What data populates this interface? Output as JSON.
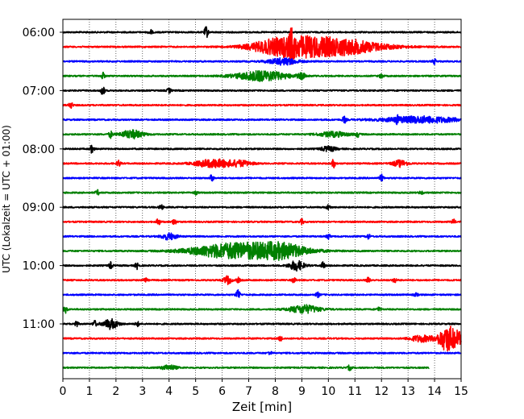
{
  "chart_data": {
    "type": "line",
    "title": "",
    "xlabel": "Zeit  [min]",
    "ylabel": "UTC (Lokalzeit = UTC + 01:00)",
    "xlim": [
      0,
      15
    ],
    "x_ticks": [
      0,
      1,
      2,
      3,
      4,
      5,
      6,
      7,
      8,
      9,
      10,
      11,
      12,
      13,
      14,
      15
    ],
    "y_tick_labels": [
      "06:00",
      "07:00",
      "08:00",
      "09:00",
      "10:00",
      "11:00"
    ],
    "grid": "vertical dotted lines at each minute",
    "trace_interval_minutes": 15,
    "colors": [
      "#000000",
      "#ff0000",
      "#0000ff",
      "#008000"
    ],
    "series": [
      {
        "start": "06:00",
        "color": "#000000",
        "end_min": 15,
        "events": [
          [
            5.4,
            0.7,
            0.05
          ],
          [
            3.3,
            0.3,
            0.05
          ]
        ]
      },
      {
        "start": "06:15",
        "color": "#ff0000",
        "end_min": 15,
        "events": [
          [
            8.4,
            1.0,
            0.9
          ],
          [
            10.3,
            1.0,
            1.2
          ],
          [
            8.6,
            1.1,
            0.05
          ]
        ]
      },
      {
        "start": "06:30",
        "color": "#0000ff",
        "end_min": 15,
        "events": [
          [
            8.3,
            0.4,
            0.4
          ],
          [
            14.0,
            0.3,
            0.05
          ]
        ]
      },
      {
        "start": "06:45",
        "color": "#008000",
        "end_min": 15,
        "events": [
          [
            7.5,
            0.6,
            0.7
          ],
          [
            9.0,
            0.3,
            0.1
          ],
          [
            1.5,
            0.4,
            0.05
          ],
          [
            12.0,
            0.3,
            0.05
          ]
        ]
      },
      {
        "start": "07:00",
        "color": "#000000",
        "end_min": 15,
        "events": [
          [
            1.5,
            0.6,
            0.05
          ],
          [
            4.0,
            0.3,
            0.05
          ]
        ]
      },
      {
        "start": "07:15",
        "color": "#ff0000",
        "end_min": 15,
        "events": [
          [
            0.3,
            0.4,
            0.05
          ]
        ]
      },
      {
        "start": "07:30",
        "color": "#0000ff",
        "end_min": 15,
        "events": [
          [
            13.5,
            0.4,
            1.0
          ],
          [
            10.6,
            0.4,
            0.05
          ],
          [
            12.6,
            0.3,
            0.05
          ]
        ]
      },
      {
        "start": "07:45",
        "color": "#008000",
        "end_min": 15,
        "events": [
          [
            2.6,
            0.5,
            0.3
          ],
          [
            1.8,
            0.4,
            0.05
          ],
          [
            10.2,
            0.3,
            0.4
          ],
          [
            11.1,
            0.3,
            0.05
          ]
        ]
      },
      {
        "start": "08:00",
        "color": "#000000",
        "end_min": 15,
        "events": [
          [
            1.1,
            0.5,
            0.05
          ],
          [
            10.0,
            0.3,
            0.2
          ]
        ]
      },
      {
        "start": "08:15",
        "color": "#ff0000",
        "end_min": 15,
        "events": [
          [
            5.7,
            0.5,
            0.5
          ],
          [
            6.7,
            0.3,
            0.3
          ],
          [
            2.1,
            0.4,
            0.05
          ],
          [
            10.2,
            0.5,
            0.05
          ],
          [
            12.7,
            0.4,
            0.2
          ]
        ]
      },
      {
        "start": "08:30",
        "color": "#0000ff",
        "end_min": 15,
        "events": [
          [
            5.6,
            0.4,
            0.05
          ],
          [
            12.0,
            0.4,
            0.05
          ]
        ]
      },
      {
        "start": "08:45",
        "color": "#008000",
        "end_min": 15,
        "events": [
          [
            1.3,
            0.3,
            0.05
          ],
          [
            5.0,
            0.2,
            0.05
          ],
          [
            13.5,
            0.2,
            0.05
          ]
        ]
      },
      {
        "start": "09:00",
        "color": "#000000",
        "end_min": 15,
        "events": [
          [
            3.7,
            0.3,
            0.05
          ],
          [
            10.0,
            0.3,
            0.05
          ]
        ]
      },
      {
        "start": "09:15",
        "color": "#ff0000",
        "end_min": 15,
        "events": [
          [
            3.6,
            0.4,
            0.05
          ],
          [
            4.2,
            0.4,
            0.05
          ],
          [
            9.0,
            0.3,
            0.05
          ],
          [
            14.7,
            0.3,
            0.05
          ]
        ]
      },
      {
        "start": "09:30",
        "color": "#0000ff",
        "end_min": 15,
        "events": [
          [
            4.0,
            0.4,
            0.2
          ],
          [
            10.0,
            0.3,
            0.05
          ],
          [
            11.5,
            0.3,
            0.05
          ]
        ]
      },
      {
        "start": "09:45",
        "color": "#008000",
        "end_min": 15,
        "events": [
          [
            6.0,
            0.5,
            1.0
          ],
          [
            7.3,
            0.7,
            1.2
          ],
          [
            8.3,
            0.5,
            0.6
          ]
        ]
      },
      {
        "start": "10:00",
        "color": "#000000",
        "end_min": 15,
        "events": [
          [
            1.8,
            0.4,
            0.05
          ],
          [
            2.8,
            0.4,
            0.05
          ],
          [
            8.8,
            0.6,
            0.2
          ],
          [
            9.8,
            0.4,
            0.05
          ]
        ]
      },
      {
        "start": "10:15",
        "color": "#ff0000",
        "end_min": 15,
        "events": [
          [
            6.2,
            0.5,
            0.1
          ],
          [
            6.6,
            0.3,
            0.05
          ],
          [
            8.7,
            0.3,
            0.05
          ],
          [
            11.5,
            0.3,
            0.05
          ],
          [
            12.5,
            0.3,
            0.05
          ],
          [
            3.1,
            0.3,
            0.05
          ]
        ]
      },
      {
        "start": "10:30",
        "color": "#0000ff",
        "end_min": 15,
        "events": [
          [
            6.6,
            0.7,
            0.05
          ],
          [
            9.6,
            0.3,
            0.05
          ],
          [
            13.3,
            0.2,
            0.05
          ]
        ]
      },
      {
        "start": "10:45",
        "color": "#008000",
        "end_min": 15,
        "events": [
          [
            9.1,
            0.5,
            0.4
          ],
          [
            0.1,
            0.4,
            0.05
          ],
          [
            11.9,
            0.3,
            0.05
          ]
        ]
      },
      {
        "start": "11:00",
        "color": "#000000",
        "end_min": 15,
        "events": [
          [
            1.8,
            0.6,
            0.2
          ],
          [
            1.2,
            0.4,
            0.05
          ],
          [
            0.5,
            0.4,
            0.05
          ],
          [
            2.8,
            0.3,
            0.05
          ]
        ]
      },
      {
        "start": "11:15",
        "color": "#ff0000",
        "end_min": 15,
        "events": [
          [
            14.5,
            1.6,
            0.25
          ],
          [
            14.9,
            0.5,
            0.1
          ],
          [
            13.5,
            0.4,
            0.3
          ],
          [
            8.2,
            0.3,
            0.05
          ]
        ]
      },
      {
        "start": "11:30",
        "color": "#0000ff",
        "end_min": 15,
        "events": [
          [
            7.8,
            0.2,
            0.05
          ]
        ]
      },
      {
        "start": "11:45",
        "color": "#008000",
        "end_min": 13.8,
        "events": [
          [
            4.0,
            0.3,
            0.2
          ],
          [
            10.8,
            0.3,
            0.05
          ]
        ]
      }
    ]
  }
}
